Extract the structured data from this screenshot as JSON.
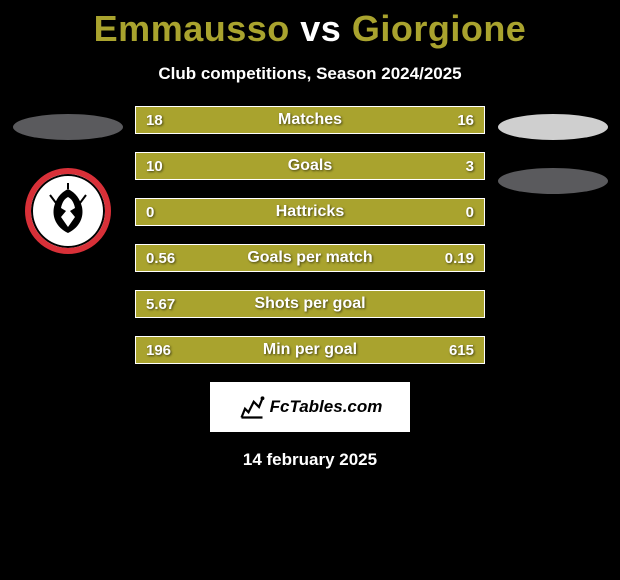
{
  "background_color": "#000000",
  "accent_color": "#a9a32e",
  "text_color": "#ffffff",
  "title": {
    "player_a": "Emmausso",
    "vs": "vs",
    "player_b": "Giorgione",
    "player_color": "#a9a32e",
    "vs_color": "#ffffff",
    "fontsize": 36
  },
  "subtitle": "Club competitions, Season 2024/2025",
  "side_left": {
    "ellipse_color": "#5a5a5d",
    "crest": {
      "ring_color": "#d83038",
      "bg_color": "#ffffff",
      "figure_color": "#000000",
      "present": true
    }
  },
  "side_right": {
    "ellipse1_color": "#cfcfcf",
    "ellipse2_color": "#5a5a5d"
  },
  "bars": {
    "fill_color": "#a9a32e",
    "border_color": "#ffffff",
    "label_color": "#ffffff",
    "value_color": "#ffffff",
    "height": 28,
    "gap": 18,
    "label_fontsize": 16,
    "value_fontsize": 15,
    "items": [
      {
        "label": "Matches",
        "left": "18",
        "right": "16"
      },
      {
        "label": "Goals",
        "left": "10",
        "right": "3"
      },
      {
        "label": "Hattricks",
        "left": "0",
        "right": "0"
      },
      {
        "label": "Goals per match",
        "left": "0.56",
        "right": "0.19"
      },
      {
        "label": "Shots per goal",
        "left": "5.67",
        "right": ""
      },
      {
        "label": "Min per goal",
        "left": "196",
        "right": "615"
      }
    ]
  },
  "logo": {
    "bg_color": "#ffffff",
    "icon_color": "#000000",
    "text": "FcTables.com",
    "text_color": "#000000"
  },
  "date": "14 february 2025"
}
